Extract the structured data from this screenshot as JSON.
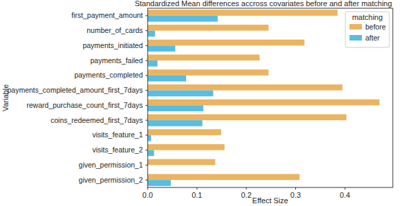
{
  "chart_data": {
    "type": "bar",
    "orientation": "horizontal",
    "title": "Standardized Mean differences accross covariates before and after matching",
    "x_label": "Effect Size",
    "y_label": "Variable",
    "legend_title": "matching",
    "legend": "upper right",
    "grid": false,
    "categories": [
      "first_payment_amount",
      "number_of_cards",
      "payments_initiated",
      "payments_failed",
      "payments_completed",
      "payments_completed_amount_first_7days",
      "reward_purchase_count_first_7days",
      "coins_redeemed_first_7days",
      "visits_feature_1",
      "visits_feature_2",
      "given_permission_1",
      "given_permission_2"
    ],
    "series": [
      {
        "name": "before",
        "color": "#ebb461",
        "values": [
          0.385,
          0.245,
          0.318,
          0.227,
          0.245,
          0.395,
          0.47,
          0.403,
          0.149,
          0.156,
          0.137,
          0.308
        ]
      },
      {
        "name": "after",
        "color": "#56bde3",
        "values": [
          0.142,
          0.015,
          0.056,
          0.02,
          0.078,
          0.133,
          0.113,
          0.111,
          0.007,
          0.013,
          0.0,
          0.047
        ]
      }
    ],
    "xlim": [
      0,
      0.497
    ],
    "xticks": [
      {
        "value": 0,
        "label": "0.0"
      },
      0.1,
      0.2,
      0.3,
      0.4
    ]
  }
}
